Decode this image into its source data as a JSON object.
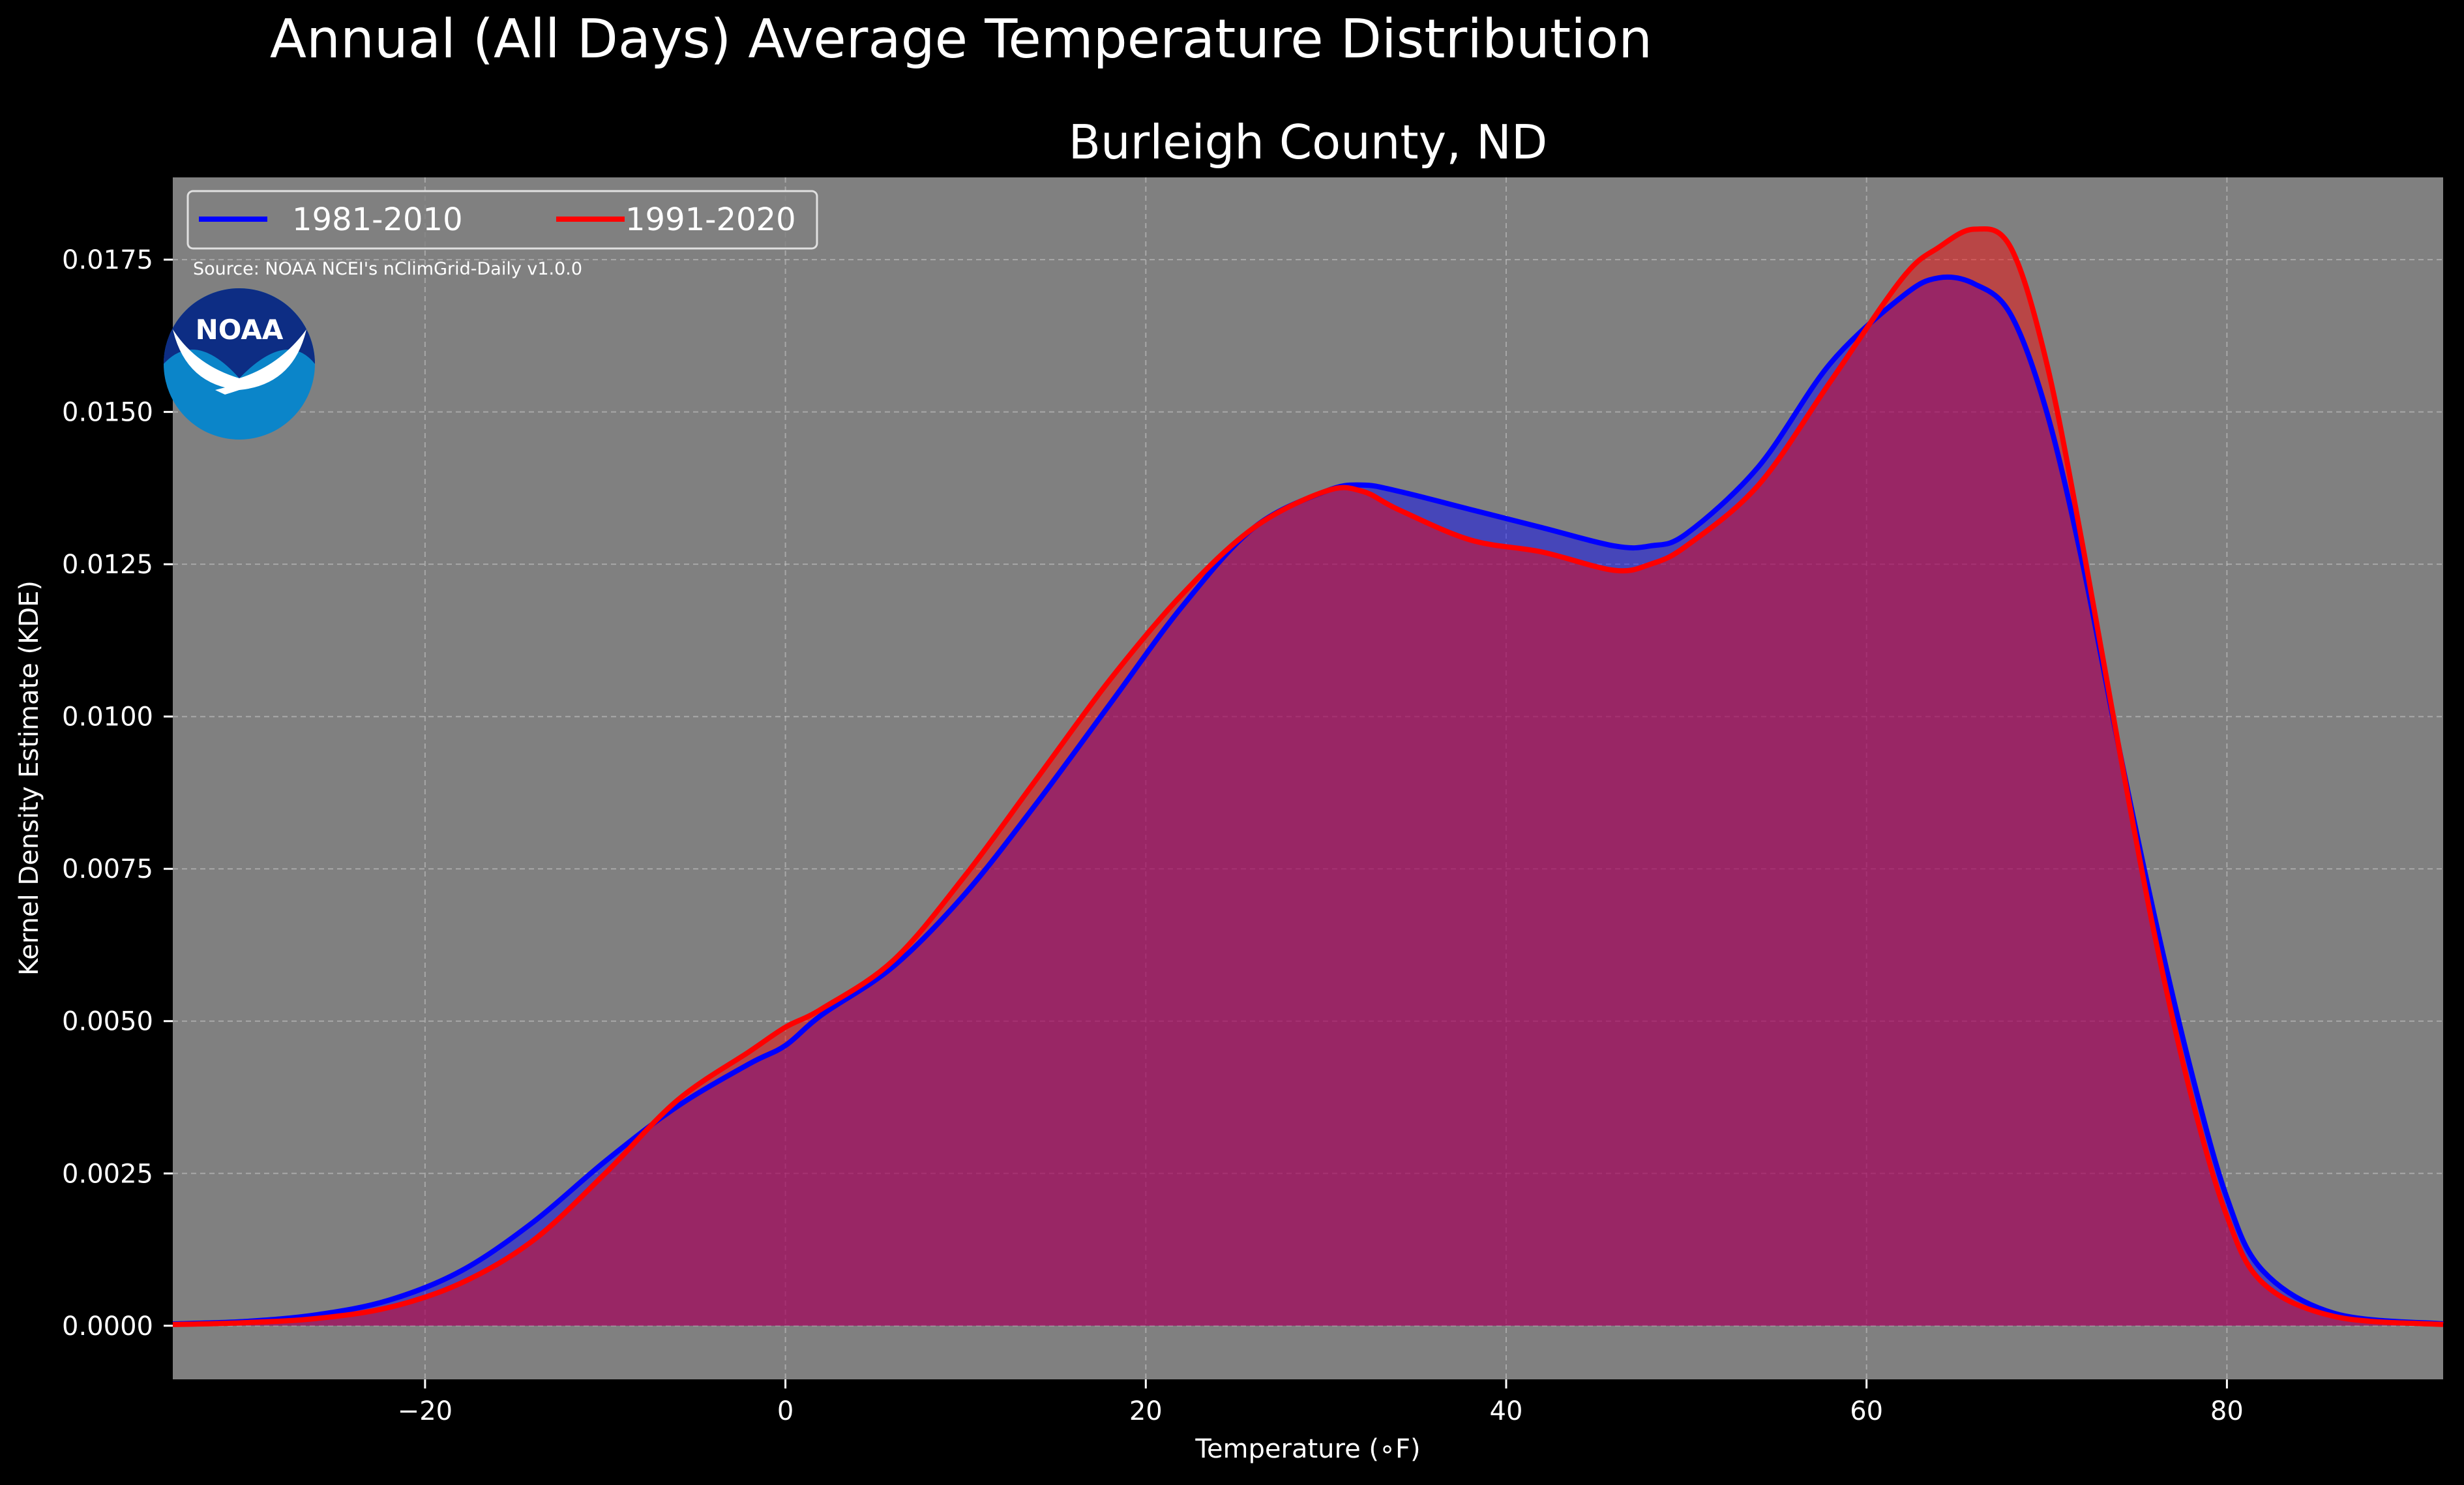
{
  "chart_data": {
    "type": "area",
    "suptitle": "Annual (All Days) Average Temperature Distribution",
    "title": "Burleigh County, ND",
    "xlabel": "Temperature (∘F)",
    "ylabel": "Kernel Density Estimate (KDE)",
    "xlim": [
      -34,
      92
    ],
    "ylim": [
      -0.00088,
      0.01885
    ],
    "xticks": [
      -20,
      0,
      20,
      40,
      60,
      80
    ],
    "xtick_labels": [
      "−20",
      "0",
      "20",
      "40",
      "60",
      "80"
    ],
    "yticks": [
      0.0,
      0.0025,
      0.005,
      0.0075,
      0.01,
      0.0125,
      0.015,
      0.0175
    ],
    "ytick_labels": [
      "0.0000",
      "0.0025",
      "0.0050",
      "0.0075",
      "0.0100",
      "0.0125",
      "0.0150",
      "0.0175"
    ],
    "grid": true,
    "legend_position": "top-left",
    "source_note": "Source: NOAA NCEI's nClimGrid-Daily v1.0.0",
    "logo_text": "NOAA",
    "colors": {
      "figure_background": "#000000",
      "axes_background": "#808080",
      "text": "#ffffff",
      "grid": "#c8c8c8"
    },
    "series": [
      {
        "name": "1981-2010",
        "color": "#0000ff",
        "fill": "#0000ff",
        "fill_opacity": 0.45,
        "x": [
          -34,
          -30,
          -26,
          -22,
          -18,
          -14,
          -10,
          -6,
          -2,
          0,
          2,
          6,
          10,
          14,
          18,
          22,
          26,
          30,
          32,
          34,
          38,
          42,
          46,
          48,
          50,
          54,
          58,
          62,
          64,
          66,
          68,
          70,
          72,
          74,
          76,
          78,
          80,
          82,
          86,
          92
        ],
        "y": [
          3e-05,
          7e-05,
          0.00018,
          0.00042,
          0.0009,
          0.0017,
          0.0027,
          0.0036,
          0.0043,
          0.0046,
          0.0051,
          0.0059,
          0.0071,
          0.0086,
          0.0102,
          0.0118,
          0.0131,
          0.0137,
          0.0138,
          0.0137,
          0.0134,
          0.0131,
          0.0128,
          0.0128,
          0.013,
          0.0141,
          0.0158,
          0.0169,
          0.0172,
          0.0171,
          0.0166,
          0.015,
          0.0125,
          0.0095,
          0.0067,
          0.0042,
          0.0021,
          0.0009,
          0.0002,
          3e-05
        ]
      },
      {
        "name": "1991-2020",
        "color": "#ff0000",
        "fill": "#ff0000",
        "fill_opacity": 0.45,
        "x": [
          -34,
          -30,
          -26,
          -22,
          -18,
          -14,
          -10,
          -6,
          -2,
          0,
          2,
          6,
          10,
          14,
          18,
          22,
          26,
          30,
          32,
          34,
          38,
          42,
          46,
          48,
          50,
          54,
          58,
          62,
          64,
          66,
          68,
          70,
          72,
          74,
          76,
          78,
          80,
          82,
          86,
          92
        ],
        "y": [
          2e-05,
          5e-05,
          0.00012,
          0.0003,
          0.0007,
          0.0014,
          0.0025,
          0.0037,
          0.0045,
          0.0049,
          0.0052,
          0.006,
          0.0074,
          0.009,
          0.0106,
          0.012,
          0.0131,
          0.0137,
          0.0137,
          0.0134,
          0.0129,
          0.0127,
          0.0124,
          0.0125,
          0.0128,
          0.0138,
          0.0155,
          0.0172,
          0.0177,
          0.018,
          0.0177,
          0.0158,
          0.0128,
          0.0095,
          0.0064,
          0.0038,
          0.0018,
          0.0007,
          0.00015,
          2e-05
        ]
      }
    ]
  }
}
